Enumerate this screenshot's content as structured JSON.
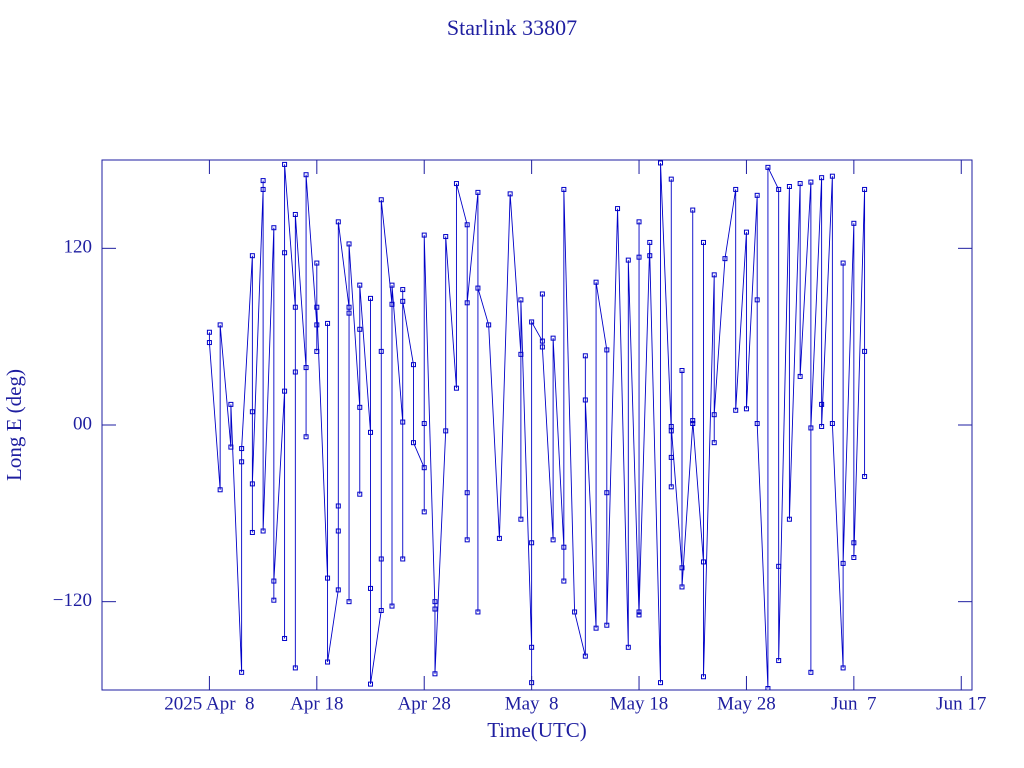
{
  "chart_data": {
    "type": "line",
    "title": "Starlink 33807",
    "xlabel": "Time(UTC)",
    "ylabel": "Long E (deg)",
    "xlim": [
      "2025-03-29",
      "2025-06-18"
    ],
    "xticks": [
      {
        "value": "2025-04-08",
        "label": "2025 Apr  8"
      },
      {
        "value": "2025-04-18",
        "label": "Apr 18"
      },
      {
        "value": "2025-04-28",
        "label": "Apr 28"
      },
      {
        "value": "2025-05-08",
        "label": "May  8"
      },
      {
        "value": "2025-05-18",
        "label": "May 18"
      },
      {
        "value": "2025-05-28",
        "label": "May 28"
      },
      {
        "value": "2025-06-07",
        "label": "Jun  7"
      },
      {
        "value": "2025-06-17",
        "label": "Jun 17"
      }
    ],
    "ylim": [
      -180,
      180
    ],
    "yticks": [
      {
        "value": -120,
        "label": "−120"
      },
      {
        "value": 0,
        "label": "00"
      },
      120
    ],
    "x": [
      "2025-04-08",
      "2025-04-08",
      "2025-04-09",
      "2025-04-09",
      "2025-04-10",
      "2025-04-10",
      "2025-04-11",
      "2025-04-11",
      "2025-04-11",
      "2025-04-12",
      "2025-04-12",
      "2025-04-12",
      "2025-04-12",
      "2025-04-13",
      "2025-04-13",
      "2025-04-13",
      "2025-04-14",
      "2025-04-14",
      "2025-04-14",
      "2025-04-15",
      "2025-04-15",
      "2025-04-15",
      "2025-04-15",
      "2025-04-16",
      "2025-04-16",
      "2025-04-16",
      "2025-04-16",
      "2025-04-17",
      "2025-04-17",
      "2025-04-17",
      "2025-04-18",
      "2025-04-18",
      "2025-04-18",
      "2025-04-18",
      "2025-04-19",
      "2025-04-19",
      "2025-04-19",
      "2025-04-20",
      "2025-04-20",
      "2025-04-20",
      "2025-04-20",
      "2025-04-21",
      "2025-04-21",
      "2025-04-21",
      "2025-04-21",
      "2025-04-22",
      "2025-04-22",
      "2025-04-22",
      "2025-04-22",
      "2025-04-23",
      "2025-04-23",
      "2025-04-23",
      "2025-04-23",
      "2025-04-24",
      "2025-04-24",
      "2025-04-24",
      "2025-04-24",
      "2025-04-25",
      "2025-04-25",
      "2025-04-25",
      "2025-04-26",
      "2025-04-26",
      "2025-04-26",
      "2025-04-26",
      "2025-04-27",
      "2025-04-27",
      "2025-04-28",
      "2025-04-28",
      "2025-04-28",
      "2025-04-28",
      "2025-04-29",
      "2025-04-29",
      "2025-04-29",
      "2025-04-30",
      "2025-04-30",
      "2025-05-01",
      "2025-05-01",
      "2025-05-02",
      "2025-05-02",
      "2025-05-02",
      "2025-05-02",
      "2025-05-03",
      "2025-05-03",
      "2025-05-03",
      "2025-05-04",
      "2025-05-05",
      "2025-05-06",
      "2025-05-07",
      "2025-05-07",
      "2025-05-07",
      "2025-05-08",
      "2025-05-08",
      "2025-05-08",
      "2025-05-08",
      "2025-05-09",
      "2025-05-09",
      "2025-05-09",
      "2025-05-10",
      "2025-05-10",
      "2025-05-11",
      "2025-05-11",
      "2025-05-11",
      "2025-05-12",
      "2025-05-13",
      "2025-05-13",
      "2025-05-13",
      "2025-05-14",
      "2025-05-14",
      "2025-05-15",
      "2025-05-15",
      "2025-05-15",
      "2025-05-16",
      "2025-05-17",
      "2025-05-17",
      "2025-05-18",
      "2025-05-18",
      "2025-05-18",
      "2025-05-18",
      "2025-05-19",
      "2025-05-19",
      "2025-05-20",
      "2025-05-20",
      "2025-05-21",
      "2025-05-21",
      "2025-05-21",
      "2025-05-21",
      "2025-05-21",
      "2025-05-22",
      "2025-05-22",
      "2025-05-22",
      "2025-05-23",
      "2025-05-23",
      "2025-05-23",
      "2025-05-24",
      "2025-05-24",
      "2025-05-24",
      "2025-05-25",
      "2025-05-25",
      "2025-05-25",
      "2025-05-26",
      "2025-05-27",
      "2025-05-27",
      "2025-05-28",
      "2025-05-28",
      "2025-05-29",
      "2025-05-29",
      "2025-05-29",
      "2025-05-30",
      "2025-05-30",
      "2025-05-31",
      "2025-05-31",
      "2025-05-31",
      "2025-06-01",
      "2025-06-01",
      "2025-06-02",
      "2025-06-02",
      "2025-06-03",
      "2025-06-03",
      "2025-06-03",
      "2025-06-04",
      "2025-06-04",
      "2025-06-04",
      "2025-06-05",
      "2025-06-05",
      "2025-06-06",
      "2025-06-06",
      "2025-06-06",
      "2025-06-07",
      "2025-06-07",
      "2025-06-07",
      "2025-06-08",
      "2025-06-08",
      "2025-06-08"
    ],
    "values": [
      63,
      56,
      -44,
      68,
      -15,
      14,
      -168,
      -25,
      -16,
      115,
      9,
      -73,
      -40,
      160,
      166,
      -72,
      134,
      -119,
      -106,
      23,
      -145,
      117,
      177,
      80,
      -165,
      36,
      143,
      39,
      -8,
      170,
      68,
      50,
      110,
      80,
      -104,
      69,
      -161,
      -112,
      -55,
      -72,
      138,
      80,
      -120,
      76,
      123,
      12,
      65,
      -47,
      95,
      -5,
      -111,
      86,
      -176,
      -126,
      50,
      -91,
      153,
      82,
      -123,
      95,
      2,
      -91,
      92,
      84,
      41,
      -12,
      -29,
      1,
      -59,
      129,
      -125,
      -120,
      -169,
      -4,
      128,
      25,
      164,
      136,
      -46,
      -78,
      83,
      158,
      -127,
      93,
      68,
      -77,
      157,
      48,
      -64,
      85,
      -151,
      -80,
      -175,
      70,
      57,
      89,
      53,
      -78,
      59,
      -83,
      -106,
      160,
      -127,
      -157,
      47,
      17,
      -138,
      97,
      51,
      -46,
      -136,
      147,
      -151,
      112,
      -129,
      138,
      114,
      -127,
      124,
      115,
      -175,
      178,
      -4,
      -22,
      -42,
      167,
      -1,
      -97,
      37,
      -110,
      1,
      146,
      3,
      -93,
      124,
      -171,
      102,
      -12,
      7,
      113,
      160,
      10,
      131,
      11,
      156,
      85,
      1,
      -179,
      175,
      160,
      -96,
      -160,
      162,
      -64,
      164,
      33,
      165,
      -168,
      -2,
      168,
      14,
      -1,
      169,
      1,
      -165,
      110,
      -94,
      137,
      -80,
      -90,
      160,
      50,
      -35
    ],
    "color": "#0000c8"
  }
}
